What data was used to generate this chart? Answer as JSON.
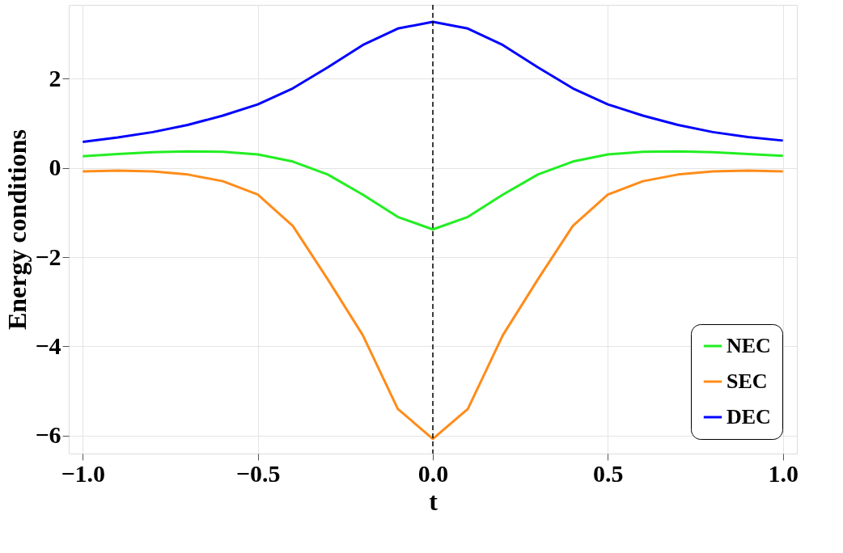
{
  "chart_data": {
    "type": "line",
    "xlabel": "t",
    "ylabel": "Energy conditions",
    "x": [
      -1,
      -0.9,
      -0.8,
      -0.7,
      -0.6,
      -0.5,
      -0.4,
      -0.3,
      -0.2,
      -0.1,
      0,
      0.1,
      0.2,
      0.3,
      0.4,
      0.5,
      0.6,
      0.7,
      0.8,
      0.9,
      1
    ],
    "series": [
      {
        "name": "NEC",
        "color": "#22ee22",
        "values": [
          0.26,
          0.31,
          0.35,
          0.37,
          0.36,
          0.3,
          0.14,
          -0.15,
          -0.6,
          -1.1,
          -1.38,
          -1.1,
          -0.6,
          -0.15,
          0.14,
          0.3,
          0.36,
          0.37,
          0.35,
          0.31,
          0.27
        ]
      },
      {
        "name": "SEC",
        "color": "#ff8c1a",
        "values": [
          -0.08,
          -0.06,
          -0.08,
          -0.15,
          -0.3,
          -0.6,
          -1.3,
          -2.5,
          -3.75,
          -5.4,
          -6.07,
          -5.4,
          -3.75,
          -2.5,
          -1.3,
          -0.6,
          -0.3,
          -0.15,
          -0.08,
          -0.06,
          -0.08
        ]
      },
      {
        "name": "DEC",
        "color": "#0000ff",
        "values": [
          0.58,
          0.68,
          0.8,
          0.96,
          1.17,
          1.42,
          1.78,
          2.25,
          2.75,
          3.12,
          3.27,
          3.12,
          2.75,
          2.25,
          1.78,
          1.42,
          1.17,
          0.96,
          0.8,
          0.69,
          0.61
        ]
      }
    ],
    "xlim": [
      -1.04,
      1.04
    ],
    "ylim": [
      -6.4,
      3.65
    ],
    "xticks": [
      {
        "value": -1,
        "label": "−1.0"
      },
      {
        "value": -0.5,
        "label": "−0.5"
      },
      {
        "value": 0,
        "label": "0.0"
      },
      {
        "value": 0.5,
        "label": "0.5"
      },
      {
        "value": 1,
        "label": "1.0"
      }
    ],
    "yticks": [
      {
        "value": -6,
        "label": "−6"
      },
      {
        "value": -4,
        "label": "−4"
      },
      {
        "value": -2,
        "label": "−2"
      },
      0,
      2
    ],
    "ref_lines": [
      {
        "axis": "x",
        "value": 0,
        "color": "#000000",
        "line_style": "dashed"
      }
    ],
    "grid": true,
    "legend": "bottom right",
    "line_style": "solid",
    "marker": "none"
  }
}
